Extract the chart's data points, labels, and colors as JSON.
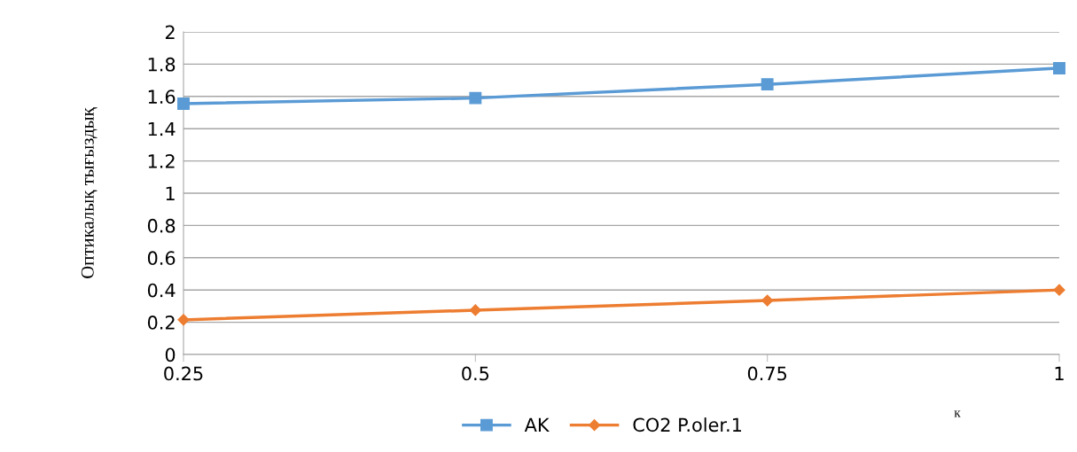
{
  "chart_data": {
    "type": "line",
    "xlabel": "к",
    "ylabel": "Оптикалық тығыздық",
    "x": [
      0.25,
      0.5,
      0.75,
      1
    ],
    "series": [
      {
        "name": "AK",
        "color": "#5b9bd5",
        "marker": "square",
        "values": [
          1.555,
          1.59,
          1.675,
          1.775
        ]
      },
      {
        "name": "CO2 P.oler.1",
        "color": "#ed7d31",
        "marker": "diamond",
        "values": [
          0.215,
          0.275,
          0.335,
          0.4
        ]
      }
    ],
    "xlim": [
      0.25,
      1
    ],
    "xticks": [
      0.25,
      0.5,
      0.75,
      1
    ],
    "ylim": [
      0,
      2
    ],
    "yticks": [
      0,
      0.2,
      0.4,
      0.6,
      0.8,
      1,
      1.2,
      1.4,
      1.6,
      1.8,
      2
    ],
    "grid": "y",
    "legend": "bottom",
    "line_style": "solid"
  }
}
